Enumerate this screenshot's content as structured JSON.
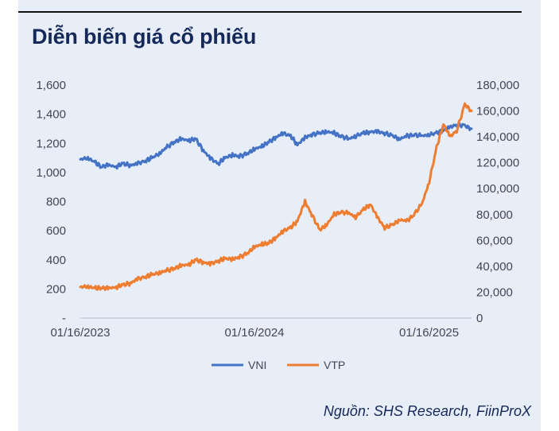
{
  "title": "Diễn biến giá cổ phiếu",
  "source": "Nguồn: SHS Research, FiinProX",
  "colors": {
    "vni": "#4472c4",
    "vtp": "#ed7d31",
    "panel": "#e8eef8",
    "title": "#14285a"
  },
  "chart_data": {
    "type": "line",
    "title": "",
    "xlabel": "",
    "ylabel": "",
    "y_left_ticks": [
      "-",
      "200",
      "400",
      "600",
      "800",
      "1,000",
      "1,200",
      "1,400",
      "1,600"
    ],
    "y_right_ticks": [
      "0",
      "20,000",
      "40,000",
      "60,000",
      "80,000",
      "100,000",
      "120,000",
      "140,000",
      "160,000",
      "180,000"
    ],
    "ylim_left": [
      0,
      1600
    ],
    "ylim_right": [
      0,
      180000
    ],
    "x_tick_labels": [
      "01/16/2023",
      "01/16/2024",
      "01/16/2025"
    ],
    "xlim": [
      "2023-01-16",
      "2025-04-15"
    ],
    "legend_position": "bottom",
    "grid": false,
    "series": [
      {
        "name": "VNI",
        "axis": "left",
        "x": [
          "2023-01-16",
          "2023-02-01",
          "2023-02-15",
          "2023-03-01",
          "2023-03-15",
          "2023-04-01",
          "2023-04-15",
          "2023-05-01",
          "2023-05-15",
          "2023-06-01",
          "2023-06-15",
          "2023-07-01",
          "2023-07-15",
          "2023-08-01",
          "2023-08-15",
          "2023-09-01",
          "2023-09-15",
          "2023-10-01",
          "2023-10-15",
          "2023-11-01",
          "2023-11-15",
          "2023-12-01",
          "2023-12-15",
          "2024-01-01",
          "2024-01-16",
          "2024-02-01",
          "2024-02-15",
          "2024-03-01",
          "2024-03-15",
          "2024-04-01",
          "2024-04-15",
          "2024-05-01",
          "2024-05-15",
          "2024-06-01",
          "2024-06-15",
          "2024-07-01",
          "2024-07-15",
          "2024-08-01",
          "2024-08-15",
          "2024-09-01",
          "2024-09-15",
          "2024-10-01",
          "2024-10-15",
          "2024-11-01",
          "2024-11-15",
          "2024-12-01",
          "2024-12-15",
          "2025-01-01",
          "2025-01-16",
          "2025-02-01",
          "2025-02-15",
          "2025-03-01",
          "2025-03-15",
          "2025-04-01",
          "2025-04-15"
        ],
        "values": [
          1090,
          1100,
          1070,
          1040,
          1050,
          1040,
          1060,
          1050,
          1060,
          1080,
          1100,
          1130,
          1170,
          1210,
          1230,
          1220,
          1230,
          1150,
          1100,
          1060,
          1100,
          1120,
          1110,
          1130,
          1160,
          1180,
          1210,
          1240,
          1270,
          1250,
          1190,
          1240,
          1260,
          1270,
          1280,
          1270,
          1250,
          1230,
          1250,
          1270,
          1280,
          1280,
          1270,
          1250,
          1230,
          1250,
          1260,
          1250,
          1260,
          1270,
          1290,
          1310,
          1330,
          1320,
          1300
        ]
      },
      {
        "name": "VTP",
        "axis": "right",
        "x": [
          "2023-01-16",
          "2023-02-01",
          "2023-02-15",
          "2023-03-01",
          "2023-03-15",
          "2023-04-01",
          "2023-04-15",
          "2023-05-01",
          "2023-05-15",
          "2023-06-01",
          "2023-06-15",
          "2023-07-01",
          "2023-07-15",
          "2023-08-01",
          "2023-08-15",
          "2023-09-01",
          "2023-09-15",
          "2023-10-01",
          "2023-10-15",
          "2023-11-01",
          "2023-11-15",
          "2023-12-01",
          "2023-12-15",
          "2024-01-01",
          "2024-01-16",
          "2024-02-01",
          "2024-02-15",
          "2024-03-01",
          "2024-03-15",
          "2024-04-01",
          "2024-04-15",
          "2024-05-01",
          "2024-05-15",
          "2024-06-01",
          "2024-06-15",
          "2024-07-01",
          "2024-07-15",
          "2024-08-01",
          "2024-08-15",
          "2024-09-01",
          "2024-09-15",
          "2024-10-01",
          "2024-10-15",
          "2024-11-01",
          "2024-11-15",
          "2024-12-01",
          "2024-12-15",
          "2025-01-01",
          "2025-01-16",
          "2025-02-01",
          "2025-02-15",
          "2025-03-01",
          "2025-03-15",
          "2025-04-01",
          "2025-04-15"
        ],
        "values": [
          24000,
          24500,
          23000,
          23500,
          23000,
          24000,
          25500,
          27000,
          30000,
          32000,
          33500,
          35000,
          36500,
          38500,
          40500,
          41500,
          45000,
          43000,
          42000,
          44000,
          46000,
          45500,
          47000,
          50000,
          55000,
          57000,
          58000,
          62000,
          67000,
          70000,
          75000,
          90000,
          80000,
          68000,
          72000,
          80000,
          82000,
          81000,
          78000,
          84000,
          88000,
          77000,
          70000,
          72000,
          76000,
          75000,
          80000,
          88000,
          105000,
          132000,
          150000,
          140000,
          145000,
          165000,
          160000
        ]
      }
    ]
  }
}
